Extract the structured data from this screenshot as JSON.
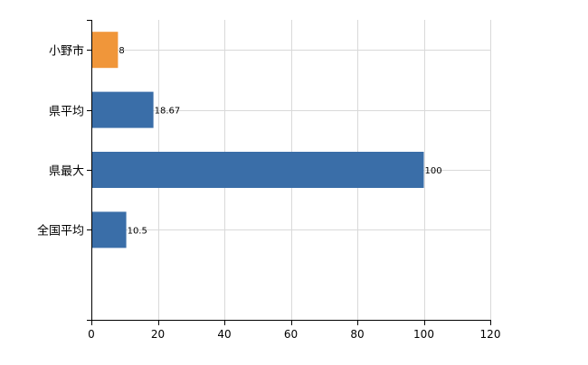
{
  "chart_data": {
    "type": "bar",
    "orientation": "horizontal",
    "categories": [
      "小野市",
      "県平均",
      "県最大",
      "全国平均"
    ],
    "values": [
      8,
      18.67,
      100,
      10.5
    ],
    "value_labels": [
      "8",
      "18.67",
      "100",
      "10.5"
    ],
    "bar_colors": [
      "#f0963a",
      "#3a6ea8",
      "#3a6ea8",
      "#3a6ea8"
    ],
    "title": "",
    "xlabel": "",
    "ylabel": "",
    "xlim": [
      0,
      120
    ],
    "x_ticks": [
      0,
      20,
      40,
      60,
      80,
      100,
      120
    ],
    "grid": true,
    "legend": "none"
  }
}
